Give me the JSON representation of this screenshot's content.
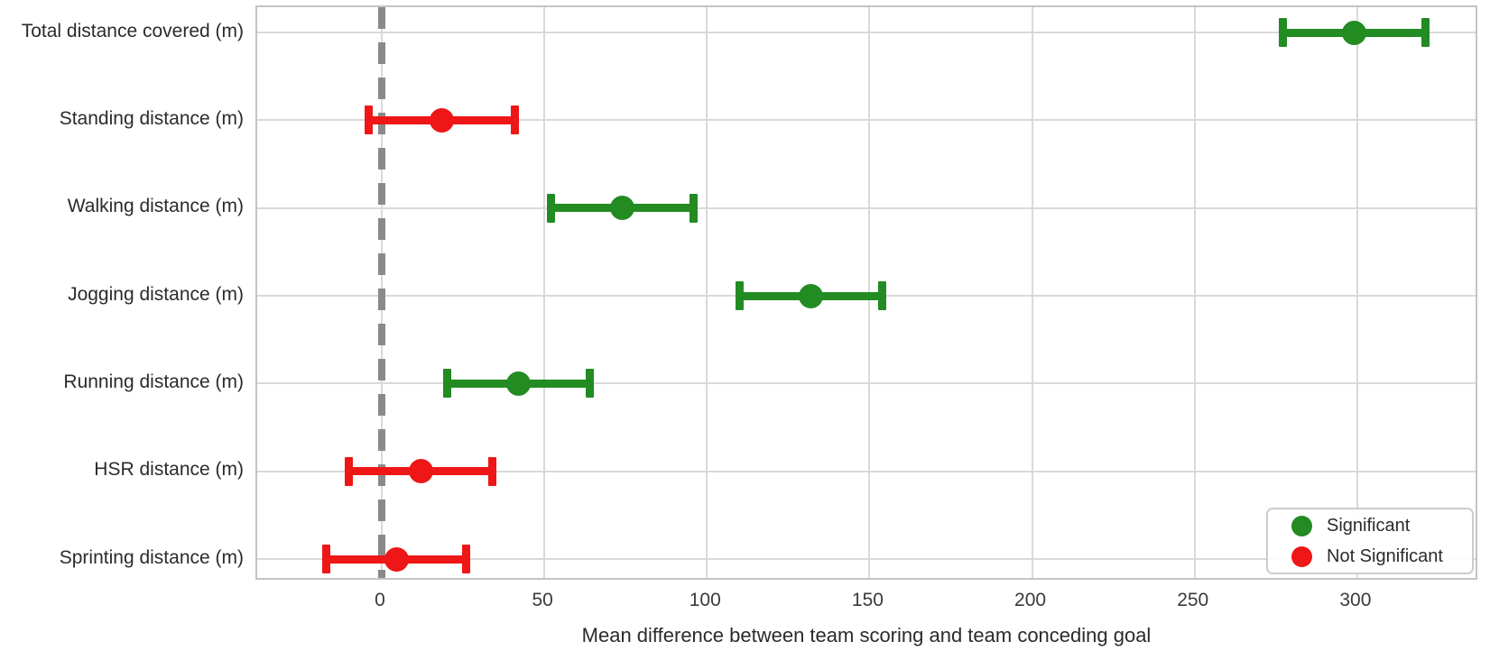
{
  "chart_data": {
    "type": "scatter",
    "subtype": "horizontal-errorbar",
    "title": "",
    "xlabel": "Mean difference between team scoring and team conceding goal",
    "ylabel": "",
    "xlim": [
      -38.3,
      337.5
    ],
    "xticks": [
      0,
      50,
      100,
      150,
      200,
      250,
      300
    ],
    "grid": true,
    "zero_reference_line": {
      "x": 0,
      "style": "dashed",
      "color": "#8a8a8a"
    },
    "categories": [
      "Total distance covered (m)",
      "Standing distance (m)",
      "Walking distance (m)",
      "Jogging distance (m)",
      "Running distance (m)",
      "HSR distance (m)",
      "Sprinting distance (m)"
    ],
    "points": [
      {
        "category": "Total distance covered (m)",
        "mean": 299,
        "ci_low": 277,
        "ci_high": 321,
        "significant": true
      },
      {
        "category": "Standing distance (m)",
        "mean": 18.5,
        "ci_low": -4,
        "ci_high": 41,
        "significant": false
      },
      {
        "category": "Walking distance (m)",
        "mean": 74,
        "ci_low": 52,
        "ci_high": 96,
        "significant": true
      },
      {
        "category": "Jogging distance (m)",
        "mean": 132,
        "ci_low": 110,
        "ci_high": 154,
        "significant": true
      },
      {
        "category": "Running distance (m)",
        "mean": 42,
        "ci_low": 20,
        "ci_high": 64,
        "significant": true
      },
      {
        "category": "HSR distance (m)",
        "mean": 12,
        "ci_low": -10,
        "ci_high": 34,
        "significant": false
      },
      {
        "category": "Sprinting distance (m)",
        "mean": 4.5,
        "ci_low": -17,
        "ci_high": 26,
        "significant": false
      }
    ],
    "colors": {
      "significant": "#228B22",
      "not_significant": "#ee1616",
      "gridline": "#d9d9d9",
      "frame": "#c4c4c4",
      "zero_line": "#8a8a8a"
    },
    "legend": {
      "position": "lower right",
      "entries": [
        {
          "label": "Significant",
          "color": "#228B22"
        },
        {
          "label": "Not Significant",
          "color": "#ee1616"
        }
      ]
    }
  }
}
